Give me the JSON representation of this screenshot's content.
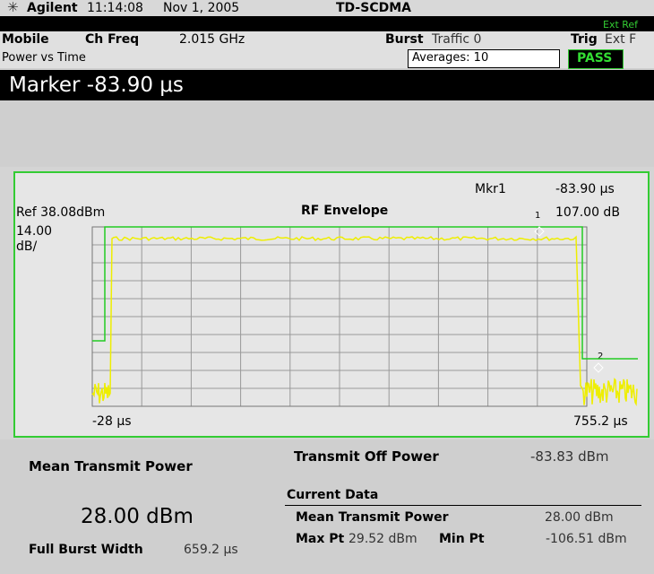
{
  "header": {
    "brand": "Agilent",
    "time": "11:14:08",
    "date": "Nov 1, 2005",
    "mode": "TD-SCDMA"
  },
  "status": {
    "ext_ref": "Ext Ref"
  },
  "settings": {
    "device": "Mobile",
    "ch_freq_label": "Ch Freq",
    "ch_freq_value": "2.015 GHz",
    "burst_label": "Burst",
    "burst_value": "Traffic 0",
    "trig_label": "Trig",
    "trig_value": "Ext F"
  },
  "measurement": {
    "name": "Power vs Time",
    "averages": "Averages: 10",
    "result": "PASS"
  },
  "marker_display": "Marker -83.90 μs",
  "graph": {
    "mkr_label": "Mkr1",
    "mkr_time": "-83.90 μs",
    "ref": "Ref 38.08dBm",
    "title": "RF Envelope",
    "mkr_index": "1",
    "mkr_value": "107.00 dB",
    "scale_value": "14.00",
    "scale_unit": "dB/",
    "marker2_index": "2",
    "x_start": "-28 μs",
    "x_end": "755.2 μs"
  },
  "results": {
    "mean_label": "Mean Transmit Power",
    "mean_value": "28.00 dBm",
    "width_label": "Full Burst Width",
    "width_value": "659.2 μs",
    "off_label": "Transmit Off Power",
    "off_value": "-83.83 dBm",
    "current_label": "Current Data",
    "cur_mean_label": "Mean Transmit Power",
    "cur_mean_value": "28.00 dBm",
    "max_label": "Max Pt",
    "max_value": "29.52 dBm",
    "min_label": "Min Pt",
    "min_value": "-106.51 dBm"
  }
}
